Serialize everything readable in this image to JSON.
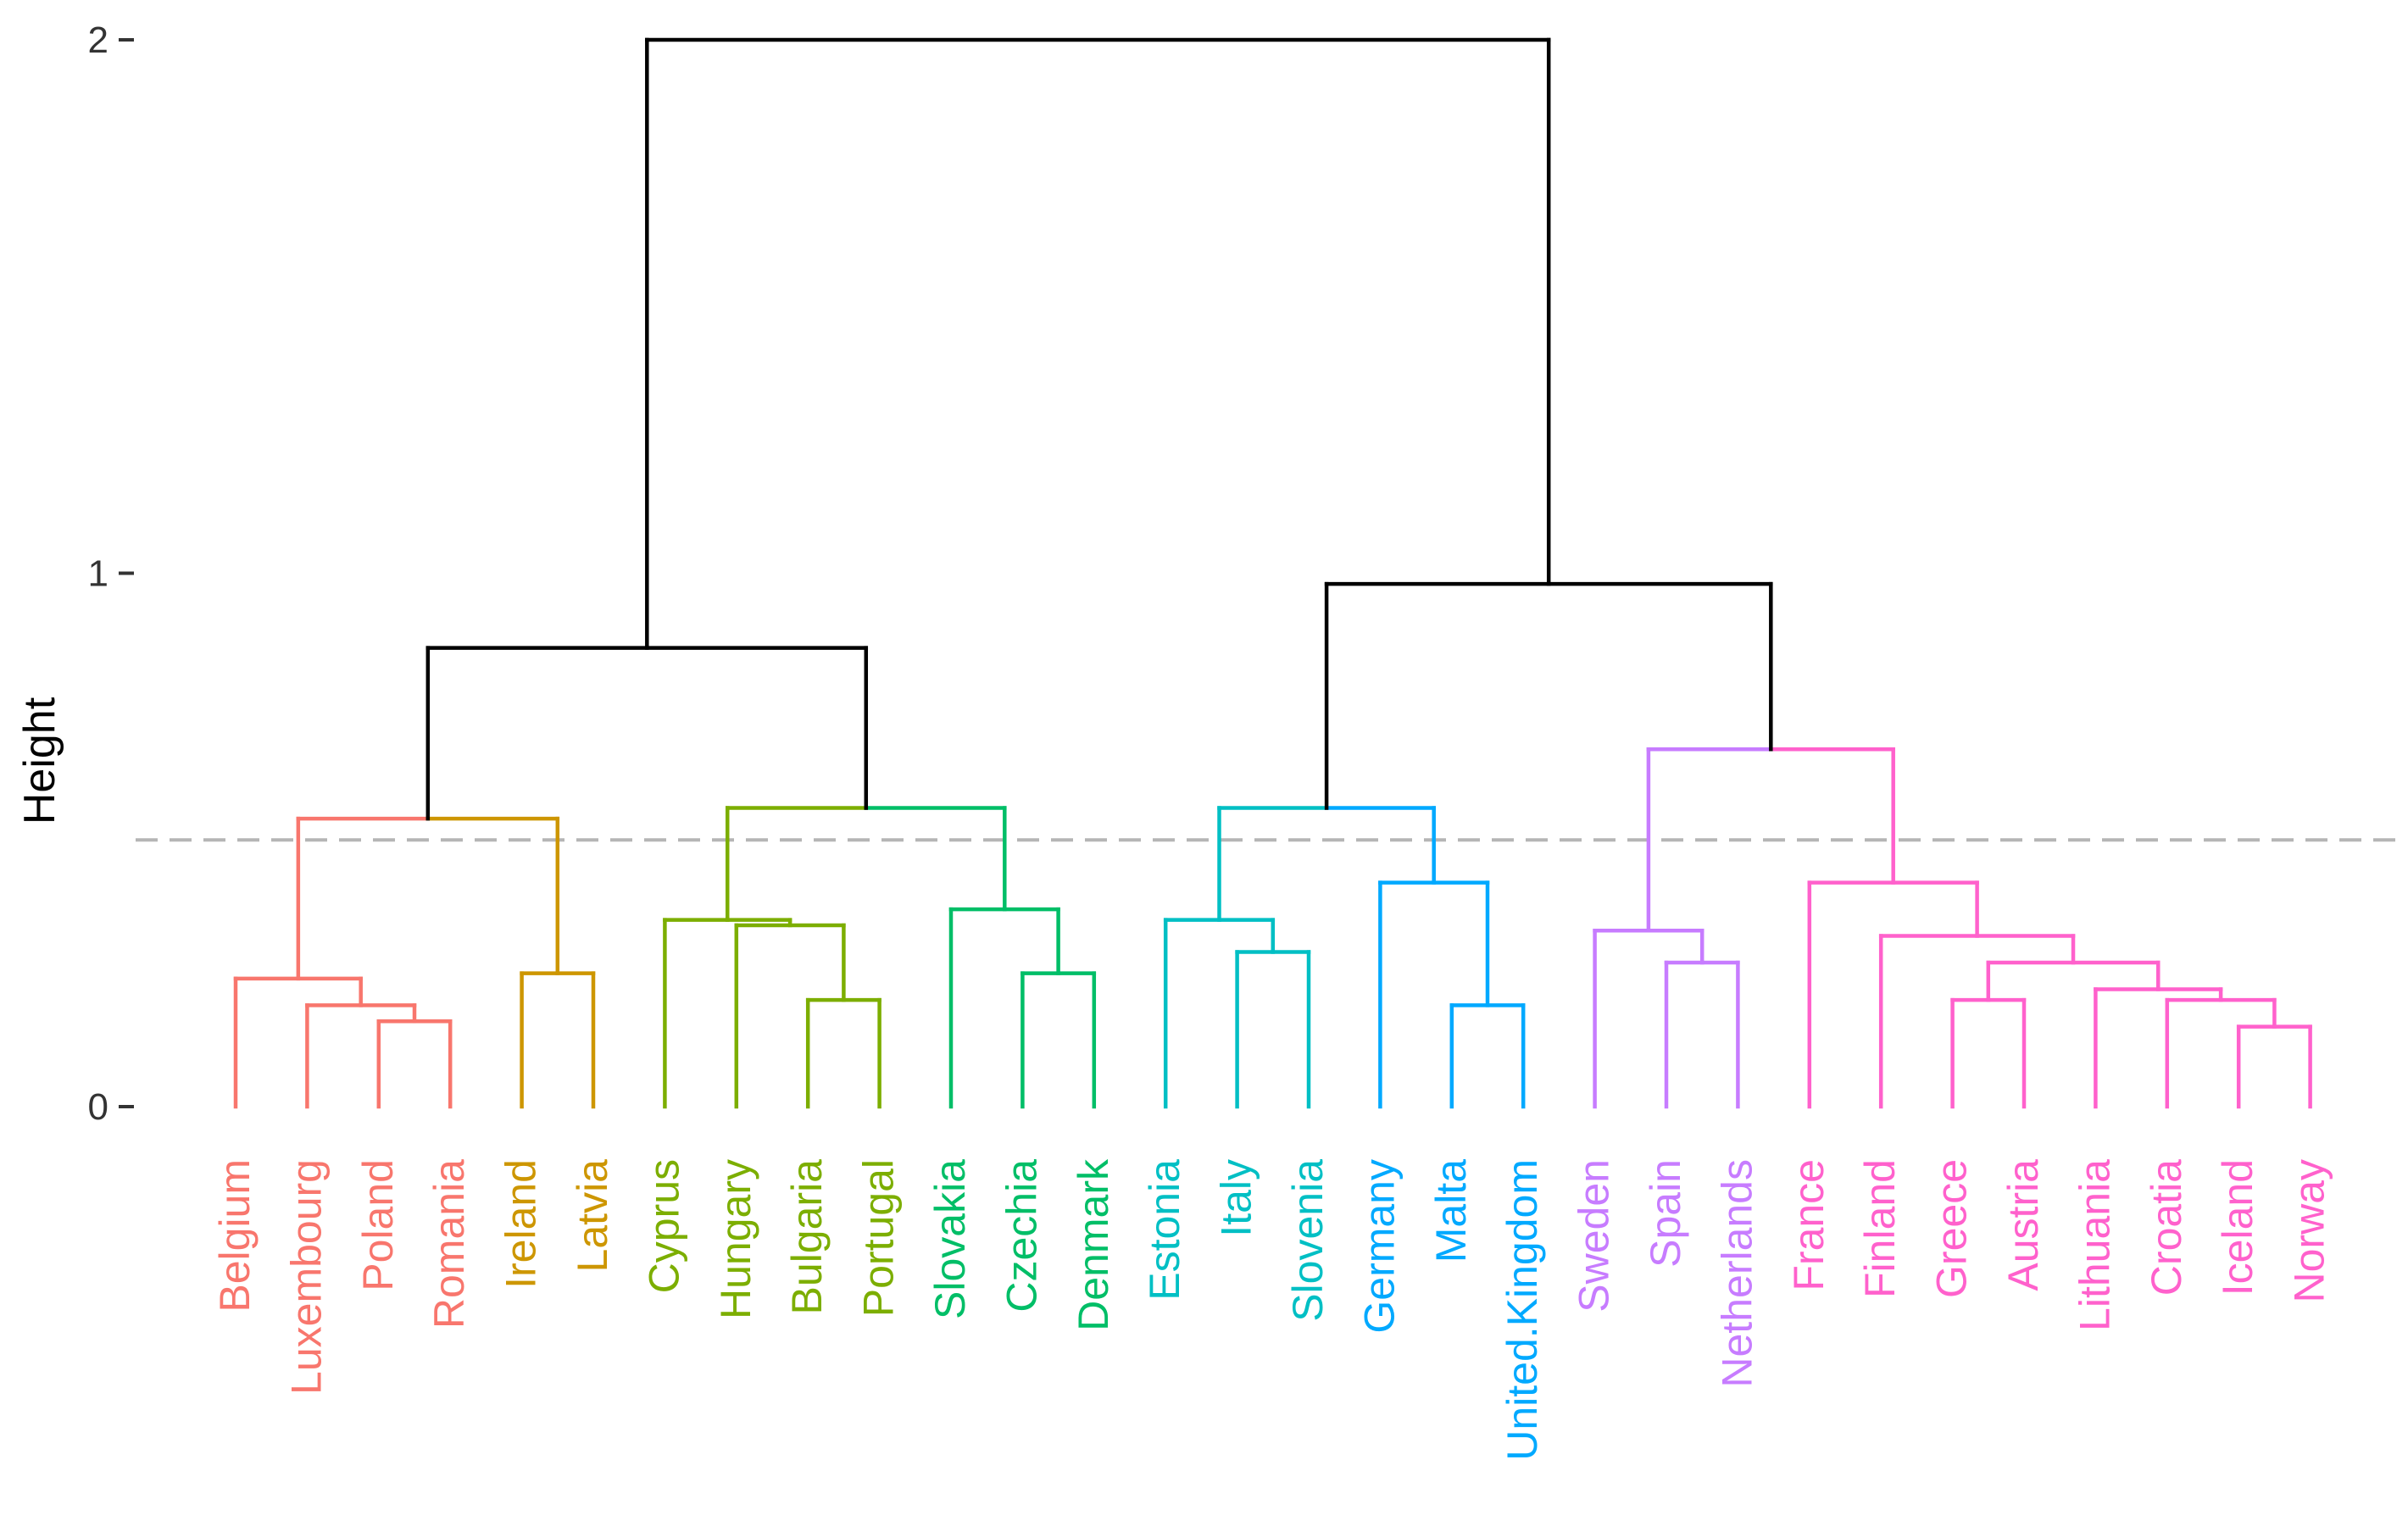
{
  "chart_data": {
    "type": "dendrogram",
    "title": "",
    "ylabel": "Height",
    "xlabel": "",
    "ylim": [
      0,
      2
    ],
    "yticks": [
      0,
      1,
      2
    ],
    "ytick_labels": [
      "0",
      "1",
      "2"
    ],
    "cut_height": 0.5,
    "leaves": [
      {
        "name": "Belgium",
        "group": 0
      },
      {
        "name": "Luxembourg",
        "group": 0
      },
      {
        "name": "Poland",
        "group": 0
      },
      {
        "name": "Romania",
        "group": 0
      },
      {
        "name": "Ireland",
        "group": 1
      },
      {
        "name": "Latvia",
        "group": 1
      },
      {
        "name": "Cyprus",
        "group": 2
      },
      {
        "name": "Hungary",
        "group": 2
      },
      {
        "name": "Bulgaria",
        "group": 2
      },
      {
        "name": "Portugal",
        "group": 2
      },
      {
        "name": "Slovakia",
        "group": 3
      },
      {
        "name": "Czechia",
        "group": 3
      },
      {
        "name": "Denmark",
        "group": 3
      },
      {
        "name": "Estonia",
        "group": 4
      },
      {
        "name": "Italy",
        "group": 4
      },
      {
        "name": "Slovenia",
        "group": 4
      },
      {
        "name": "Germany",
        "group": 5
      },
      {
        "name": "Malta",
        "group": 5
      },
      {
        "name": "United.Kingdom",
        "group": 5
      },
      {
        "name": "Sweden",
        "group": 6
      },
      {
        "name": "Spain",
        "group": 6
      },
      {
        "name": "Netherlands",
        "group": 6
      },
      {
        "name": "France",
        "group": 7
      },
      {
        "name": "Finland",
        "group": 7
      },
      {
        "name": "Greece",
        "group": 7
      },
      {
        "name": "Austria",
        "group": 7
      },
      {
        "name": "Lithuania",
        "group": 7
      },
      {
        "name": "Croatia",
        "group": 7
      },
      {
        "name": "Iceland",
        "group": 7
      },
      {
        "name": "Norway",
        "group": 7
      }
    ],
    "group_colors": [
      "#F8766D",
      "#CD9600",
      "#7CAE00",
      "#00BE67",
      "#00BFC4",
      "#00A9FF",
      "#C77CFF",
      "#FF61CC"
    ],
    "merges": [
      {
        "l": "L2",
        "r": "L3",
        "h": 0.16,
        "c": 0
      },
      {
        "l": "L1",
        "r": "M0",
        "h": 0.19,
        "c": 0
      },
      {
        "l": "L0",
        "r": "M1",
        "h": 0.24,
        "c": 0
      },
      {
        "l": "L4",
        "r": "L5",
        "h": 0.25,
        "c": 1
      },
      {
        "l": "M2",
        "r": "M3",
        "h": 0.54,
        "c": -1
      },
      {
        "l": "L8",
        "r": "L9",
        "h": 0.2,
        "c": 2
      },
      {
        "l": "L7",
        "r": "M5",
        "h": 0.34,
        "c": 2
      },
      {
        "l": "L6",
        "r": "M6",
        "h": 0.35,
        "c": 2
      },
      {
        "l": "L11",
        "r": "L12",
        "h": 0.25,
        "c": 3
      },
      {
        "l": "L10",
        "r": "M8",
        "h": 0.37,
        "c": 3
      },
      {
        "l": "M7",
        "r": "M9",
        "h": 0.56,
        "c": -1
      },
      {
        "l": "M4",
        "r": "M10",
        "h": 0.86,
        "c": -2
      },
      {
        "l": "L14",
        "r": "L15",
        "h": 0.29,
        "c": 4
      },
      {
        "l": "L13",
        "r": "M12",
        "h": 0.35,
        "c": 4
      },
      {
        "l": "L17",
        "r": "L18",
        "h": 0.19,
        "c": 5
      },
      {
        "l": "L16",
        "r": "M14",
        "h": 0.42,
        "c": 5
      },
      {
        "l": "M13",
        "r": "M15",
        "h": 0.56,
        "c": -1
      },
      {
        "l": "L20",
        "r": "L21",
        "h": 0.27,
        "c": 6
      },
      {
        "l": "L19",
        "r": "M17",
        "h": 0.33,
        "c": 6
      },
      {
        "l": "L28",
        "r": "L29",
        "h": 0.15,
        "c": 7
      },
      {
        "l": "L27",
        "r": "M19",
        "h": 0.2,
        "c": 7
      },
      {
        "l": "L26",
        "r": "M20",
        "h": 0.22,
        "c": 7
      },
      {
        "l": "L24",
        "r": "L25",
        "h": 0.2,
        "c": 7
      },
      {
        "l": "M22",
        "r": "M21",
        "h": 0.27,
        "c": 7
      },
      {
        "l": "L23",
        "r": "M23",
        "h": 0.32,
        "c": 7
      },
      {
        "l": "L22",
        "r": "M24",
        "h": 0.42,
        "c": 7
      },
      {
        "l": "M18",
        "r": "M25",
        "h": 0.67,
        "c": -1
      },
      {
        "l": "M16",
        "r": "M26",
        "h": 0.98,
        "c": -2
      },
      {
        "l": "M11",
        "r": "M27",
        "h": 2.0,
        "c": -2
      }
    ],
    "cross_group_color": "#000000"
  }
}
